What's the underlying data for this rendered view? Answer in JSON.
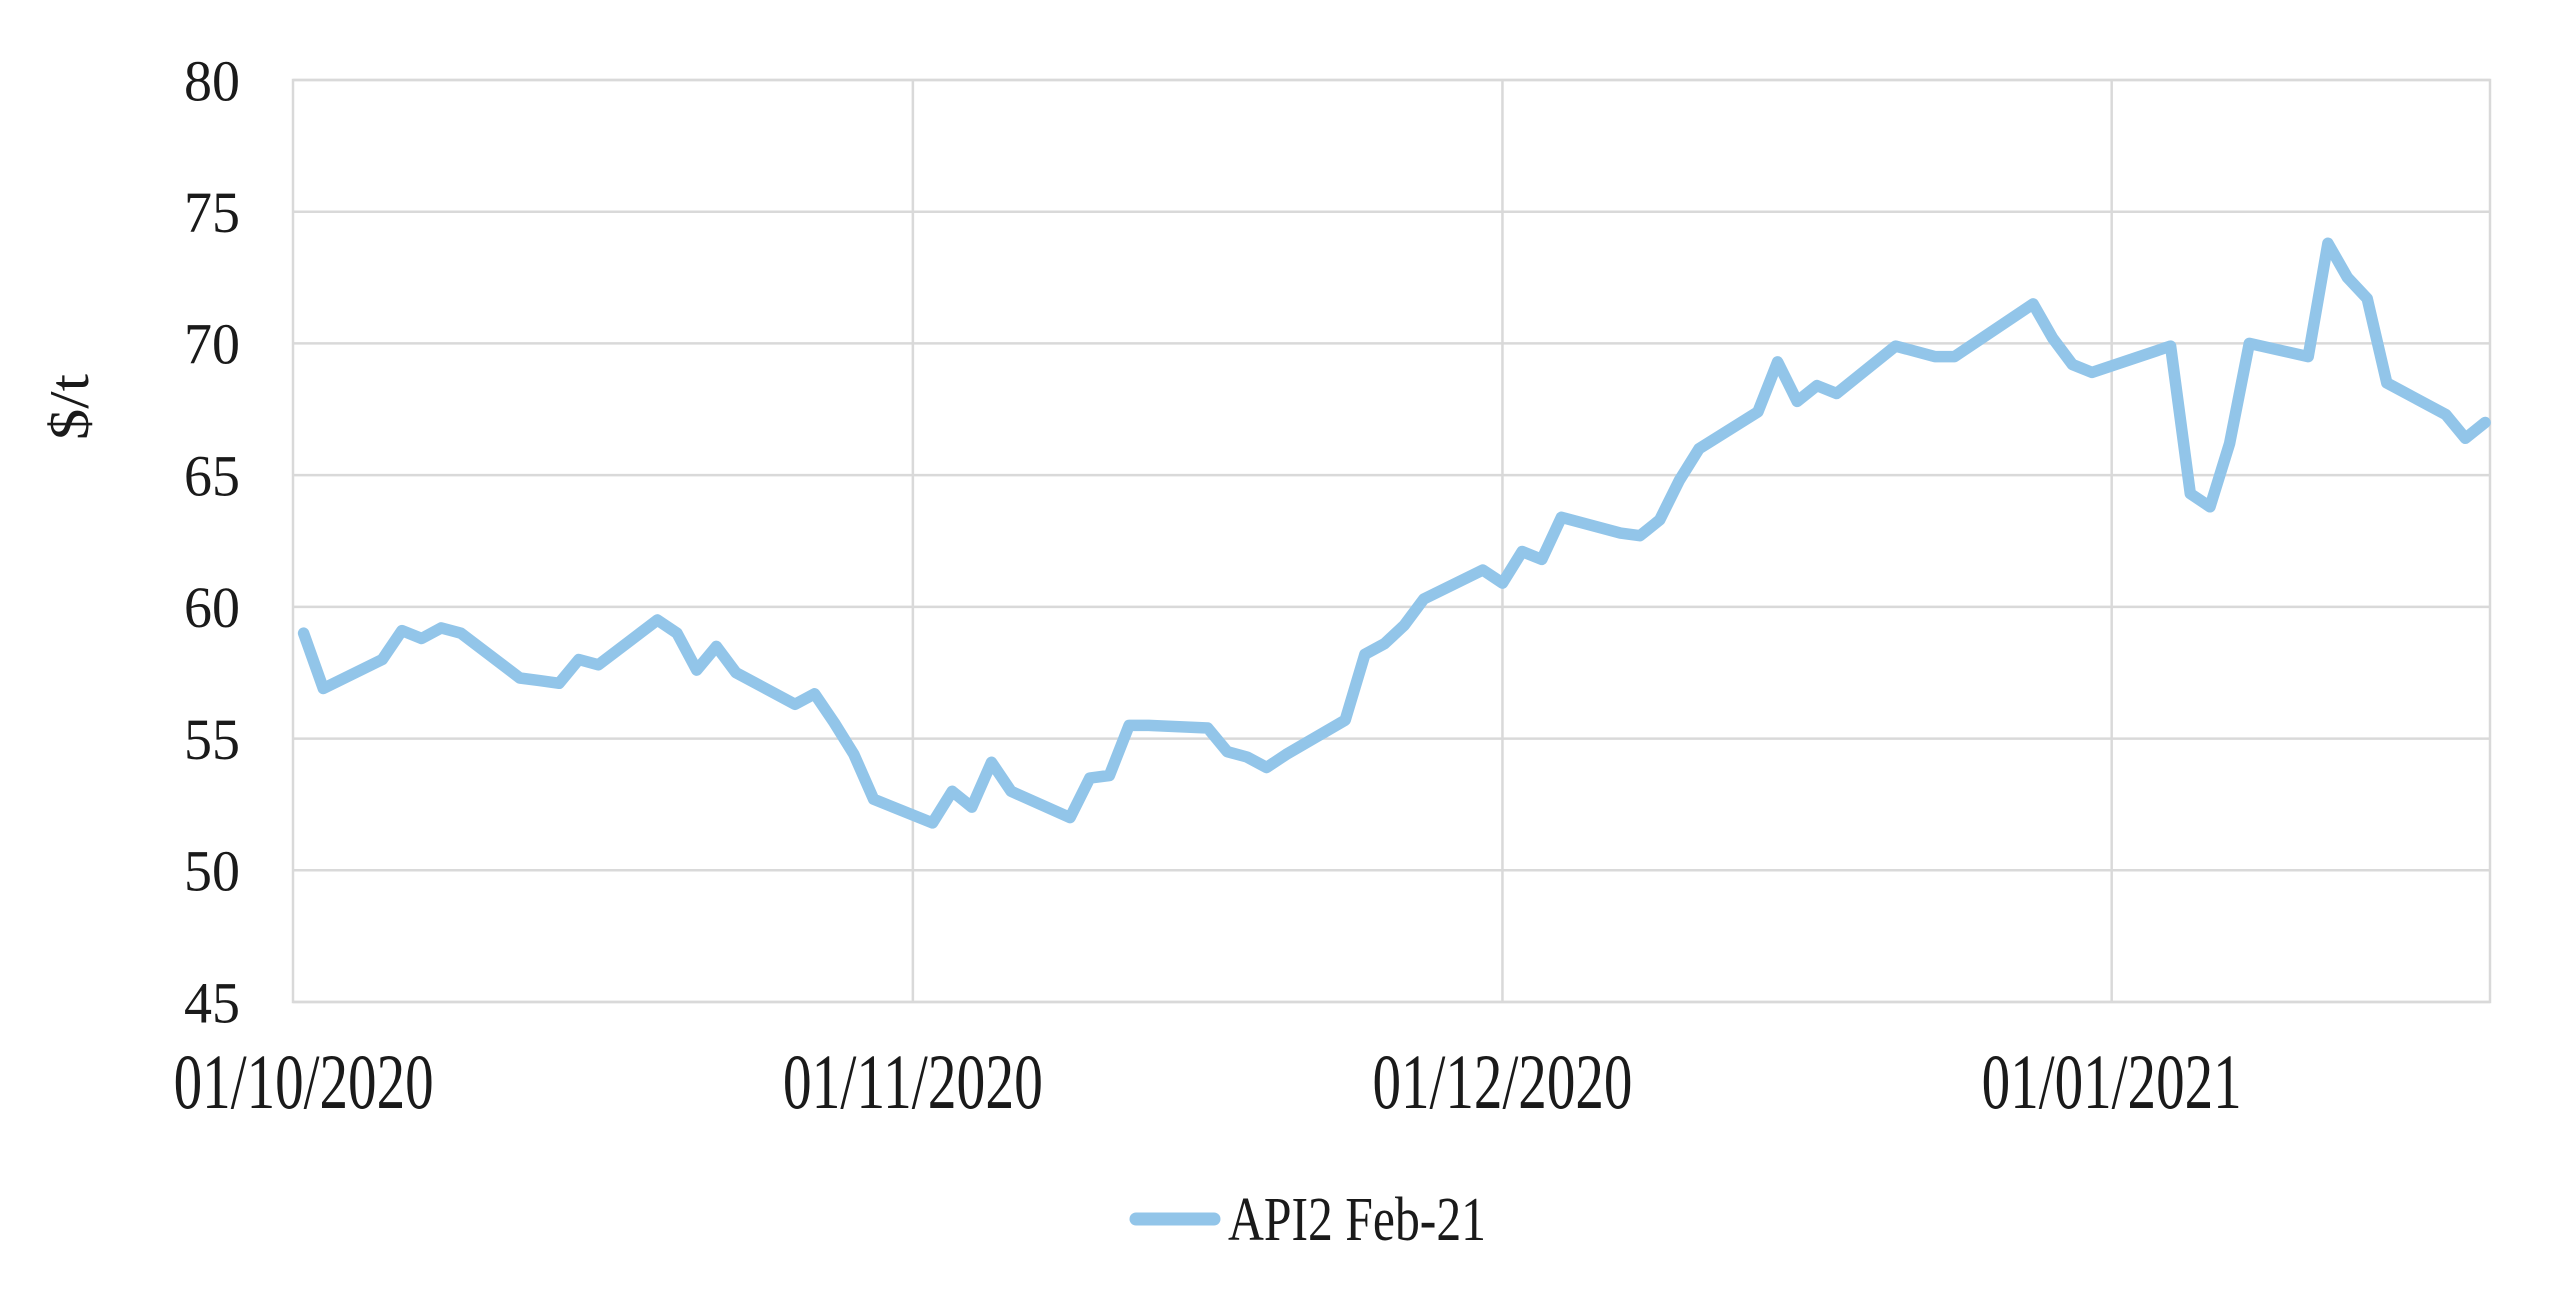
{
  "page": {
    "background_color": "#ffffff"
  },
  "chart_data": {
    "type": "line",
    "title": "",
    "xlabel": "",
    "ylabel": "$/t",
    "ylim": [
      45,
      80
    ],
    "yticks": [
      45,
      50,
      55,
      60,
      65,
      70,
      75,
      80
    ],
    "xlim": [
      "2020-09-30T11:00:00Z",
      "2021-01-20T06:00:00Z"
    ],
    "xticks": [
      {
        "date": "2020-10-01",
        "label": "01/10/2020",
        "gridline": false
      },
      {
        "date": "2020-11-01",
        "label": "01/11/2020",
        "gridline": true
      },
      {
        "date": "2020-12-01",
        "label": "01/12/2020",
        "gridline": true
      },
      {
        "date": "2021-01-01",
        "label": "01/01/2021",
        "gridline": true
      }
    ],
    "grid_on": true,
    "grid_color": "#d9d9d9",
    "text_color": "#1a1a1a",
    "legend_position": "bottom-center",
    "legend": {
      "label": "API2 Feb-21"
    },
    "series": [
      {
        "name": "API2 Feb-21",
        "color": "#92c5e9",
        "points": [
          {
            "d": "2020-10-01",
            "v": 59.0
          },
          {
            "d": "2020-10-02",
            "v": 56.9
          },
          {
            "d": "2020-10-05",
            "v": 58.0
          },
          {
            "d": "2020-10-06",
            "v": 59.1
          },
          {
            "d": "2020-10-07",
            "v": 58.8
          },
          {
            "d": "2020-10-08",
            "v": 59.2
          },
          {
            "d": "2020-10-09",
            "v": 59.0
          },
          {
            "d": "2020-10-12",
            "v": 57.3
          },
          {
            "d": "2020-10-13",
            "v": 57.2
          },
          {
            "d": "2020-10-14",
            "v": 57.1
          },
          {
            "d": "2020-10-15",
            "v": 58.0
          },
          {
            "d": "2020-10-16",
            "v": 57.8
          },
          {
            "d": "2020-10-19",
            "v": 59.5
          },
          {
            "d": "2020-10-20",
            "v": 59.0
          },
          {
            "d": "2020-10-21",
            "v": 57.6
          },
          {
            "d": "2020-10-22",
            "v": 58.5
          },
          {
            "d": "2020-10-23",
            "v": 57.5
          },
          {
            "d": "2020-10-26",
            "v": 56.3
          },
          {
            "d": "2020-10-27",
            "v": 56.7
          },
          {
            "d": "2020-10-28",
            "v": 55.6
          },
          {
            "d": "2020-10-29",
            "v": 54.4
          },
          {
            "d": "2020-10-30",
            "v": 52.7
          },
          {
            "d": "2020-11-02",
            "v": 51.8
          },
          {
            "d": "2020-11-03",
            "v": 53.0
          },
          {
            "d": "2020-11-04",
            "v": 52.4
          },
          {
            "d": "2020-11-05",
            "v": 54.1
          },
          {
            "d": "2020-11-06",
            "v": 53.0
          },
          {
            "d": "2020-11-09",
            "v": 52.0
          },
          {
            "d": "2020-11-10",
            "v": 53.5
          },
          {
            "d": "2020-11-11",
            "v": 53.6
          },
          {
            "d": "2020-11-12",
            "v": 55.5
          },
          {
            "d": "2020-11-13",
            "v": 55.5
          },
          {
            "d": "2020-11-16",
            "v": 55.4
          },
          {
            "d": "2020-11-17",
            "v": 54.5
          },
          {
            "d": "2020-11-18",
            "v": 54.3
          },
          {
            "d": "2020-11-19",
            "v": 53.9
          },
          {
            "d": "2020-11-20",
            "v": 54.4
          },
          {
            "d": "2020-11-23",
            "v": 55.7
          },
          {
            "d": "2020-11-24",
            "v": 58.2
          },
          {
            "d": "2020-11-25",
            "v": 58.6
          },
          {
            "d": "2020-11-26",
            "v": 59.3
          },
          {
            "d": "2020-11-27",
            "v": 60.3
          },
          {
            "d": "2020-11-30",
            "v": 61.4
          },
          {
            "d": "2020-12-01",
            "v": 60.9
          },
          {
            "d": "2020-12-02",
            "v": 62.1
          },
          {
            "d": "2020-12-03",
            "v": 61.8
          },
          {
            "d": "2020-12-04",
            "v": 63.4
          },
          {
            "d": "2020-12-07",
            "v": 62.8
          },
          {
            "d": "2020-12-08",
            "v": 62.7
          },
          {
            "d": "2020-12-09",
            "v": 63.3
          },
          {
            "d": "2020-12-10",
            "v": 64.8
          },
          {
            "d": "2020-12-11",
            "v": 66.0
          },
          {
            "d": "2020-12-14",
            "v": 67.4
          },
          {
            "d": "2020-12-15",
            "v": 69.3
          },
          {
            "d": "2020-12-16",
            "v": 67.8
          },
          {
            "d": "2020-12-17",
            "v": 68.4
          },
          {
            "d": "2020-12-18",
            "v": 68.1
          },
          {
            "d": "2020-12-21",
            "v": 69.9
          },
          {
            "d": "2020-12-22",
            "v": 69.7
          },
          {
            "d": "2020-12-23",
            "v": 69.5
          },
          {
            "d": "2020-12-24",
            "v": 69.5
          },
          {
            "d": "2020-12-28",
            "v": 71.5
          },
          {
            "d": "2020-12-29",
            "v": 70.2
          },
          {
            "d": "2020-12-30",
            "v": 69.2
          },
          {
            "d": "2020-12-31",
            "v": 68.9
          },
          {
            "d": "2021-01-04",
            "v": 69.9
          },
          {
            "d": "2021-01-05",
            "v": 64.3
          },
          {
            "d": "2021-01-06",
            "v": 63.8
          },
          {
            "d": "2021-01-07",
            "v": 66.2
          },
          {
            "d": "2021-01-08",
            "v": 70.0
          },
          {
            "d": "2021-01-11",
            "v": 69.5
          },
          {
            "d": "2021-01-12",
            "v": 73.8
          },
          {
            "d": "2021-01-13",
            "v": 72.5
          },
          {
            "d": "2021-01-14",
            "v": 71.7
          },
          {
            "d": "2021-01-15",
            "v": 68.5
          },
          {
            "d": "2021-01-18",
            "v": 67.3
          },
          {
            "d": "2021-01-19",
            "v": 66.4
          },
          {
            "d": "2021-01-20",
            "v": 67.0
          }
        ]
      }
    ]
  }
}
